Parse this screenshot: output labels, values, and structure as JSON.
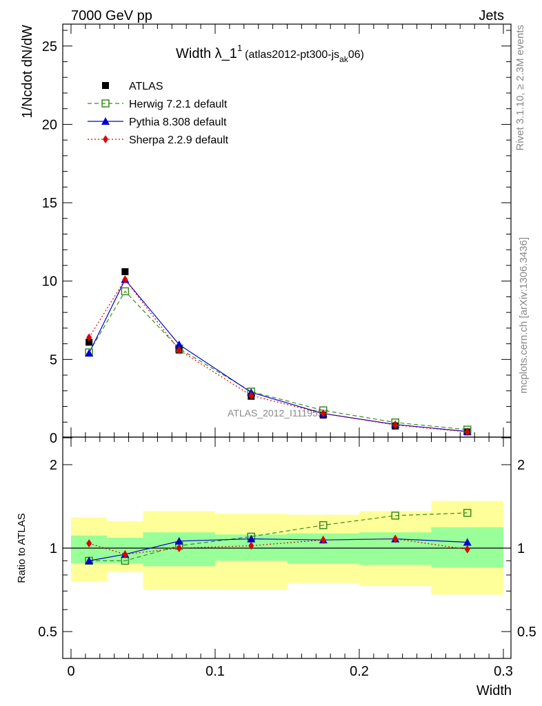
{
  "header": {
    "left": "7000 GeV pp",
    "right": "Jets"
  },
  "side_text": {
    "rivet": "Rivet 3.1.10, ≥ 2.3M events",
    "mcplots": "mcplots.cern.ch [arXiv:1306.3436]"
  },
  "chart_data": {
    "type": "line",
    "title": {
      "main": "Width λ_1",
      "sup": "1",
      "sub_main": "(atlas2012-pt300-js",
      "sub_sub": "ak",
      "sub_end": "06)"
    },
    "watermark": "ATLAS_2012_I1119557",
    "xlabel": "Width",
    "ylabel": "1/Ncdot dN/dW",
    "ratio_ylabel": "Ratio to ATLAS",
    "xlim": [
      0,
      0.3
    ],
    "ylim": [
      0,
      26.5
    ],
    "ratio_ylim": [
      0.35,
      2.35
    ],
    "x_ticks": [
      "0",
      "0.1",
      "0.2",
      "0.3"
    ],
    "y_ticks": [
      "0",
      "5",
      "10",
      "15",
      "20",
      "25"
    ],
    "ratio_ticks": [
      "0.5",
      "1",
      "2"
    ],
    "x": [
      0.0125,
      0.0375,
      0.075,
      0.125,
      0.175,
      0.225,
      0.275
    ],
    "bin_edges": [
      0,
      0.025,
      0.05,
      0.1,
      0.15,
      0.2,
      0.25,
      0.3
    ],
    "series": [
      {
        "name": "ATLAS",
        "color": "#000000",
        "marker": "square-filled",
        "values": [
          6.1,
          10.6,
          5.6,
          2.65,
          1.45,
          0.75,
          0.38
        ]
      },
      {
        "name": "Herwig 7.2.1 default",
        "color": "#3a8a1e",
        "marker": "square-open",
        "dash": "6,4",
        "values": [
          5.45,
          9.35,
          5.7,
          2.95,
          1.75,
          0.98,
          0.52
        ]
      },
      {
        "name": "Pythia 8.308 default",
        "color": "#0000cc",
        "marker": "triangle",
        "values": [
          5.4,
          10.1,
          5.95,
          2.9,
          1.55,
          0.85,
          0.4
        ]
      },
      {
        "name": "Sherpa 2.2.9 default",
        "color": "#dd0000",
        "marker": "diamond",
        "dash": "2,3",
        "values": [
          6.4,
          10.1,
          5.6,
          2.7,
          1.55,
          0.82,
          0.38
        ]
      }
    ],
    "ratio_series": [
      {
        "name": "Herwig 7.2.1 default",
        "values": [
          0.9,
          0.9,
          1.02,
          1.1,
          1.21,
          1.31,
          1.34
        ]
      },
      {
        "name": "Pythia 8.308 default",
        "values": [
          0.9,
          0.95,
          1.06,
          1.08,
          1.07,
          1.08,
          1.05
        ]
      },
      {
        "name": "Sherpa 2.2.9 default",
        "values": [
          1.04,
          0.95,
          1.0,
          1.02,
          1.07,
          1.08,
          0.99
        ]
      }
    ],
    "bands": {
      "inner_color": "#99ff99",
      "outer_color": "#ffff99",
      "inner": [
        [
          0.88,
          1.11
        ],
        [
          0.88,
          1.09
        ],
        [
          0.86,
          1.14
        ],
        [
          0.9,
          1.12
        ],
        [
          0.88,
          1.13
        ],
        [
          0.87,
          1.14
        ],
        [
          0.85,
          1.19
        ]
      ],
      "outer": [
        [
          0.76,
          1.29
        ],
        [
          0.82,
          1.25
        ],
        [
          0.71,
          1.36
        ],
        [
          0.71,
          1.33
        ],
        [
          0.75,
          1.32
        ],
        [
          0.73,
          1.36
        ],
        [
          0.68,
          1.48
        ]
      ]
    }
  }
}
